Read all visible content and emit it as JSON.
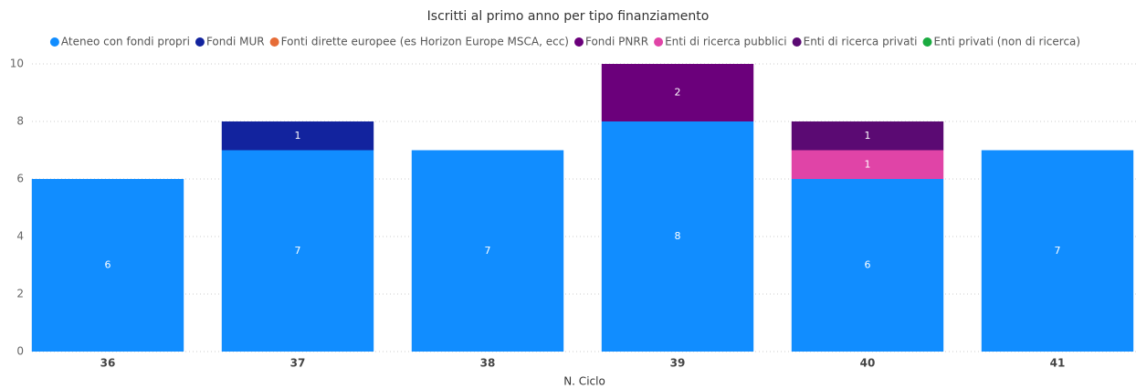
{
  "chart_data": {
    "type": "stacked_bar",
    "title": "Iscritti al primo anno per tipo finanziamento",
    "x_label": "N. Ciclo",
    "categories": [
      "36",
      "37",
      "38",
      "39",
      "40",
      "41"
    ],
    "series": [
      {
        "name": "Ateneo con fondi propri",
        "color": "#118DFF",
        "values": [
          6,
          7,
          7,
          8,
          6,
          7
        ]
      },
      {
        "name": "Fondi MUR",
        "color": "#12239E",
        "values": [
          null,
          1,
          null,
          null,
          null,
          null
        ]
      },
      {
        "name": "Fonti dirette europee (es Horizon Europe MSCA, ecc)",
        "color": "#E66C37",
        "values": [
          null,
          null,
          null,
          null,
          null,
          null
        ]
      },
      {
        "name": "Fondi PNRR",
        "color": "#6B007B",
        "values": [
          null,
          null,
          null,
          2,
          null,
          null
        ]
      },
      {
        "name": "Enti di ricerca pubblici",
        "color": "#E044A7",
        "values": [
          null,
          null,
          null,
          null,
          1,
          null
        ]
      },
      {
        "name": "Enti di ricerca privati",
        "color": "#5B0A73",
        "values": [
          null,
          null,
          null,
          null,
          1,
          null
        ]
      },
      {
        "name": "Enti privati (non di ricerca)",
        "color": "#1AAB40",
        "values": [
          null,
          null,
          null,
          null,
          null,
          null
        ]
      }
    ],
    "ylim": [
      0,
      10
    ],
    "yticks": [
      0,
      2,
      4,
      6,
      8,
      10
    ],
    "grid": true,
    "legend": "top"
  }
}
